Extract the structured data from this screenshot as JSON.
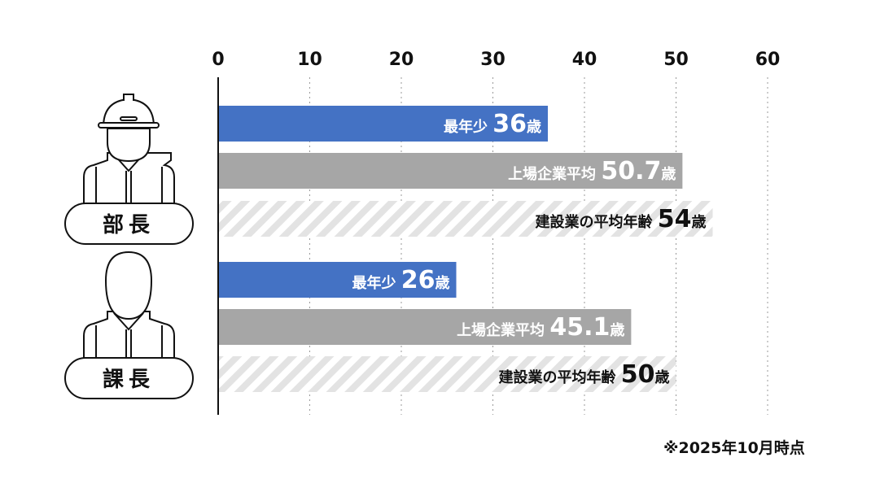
{
  "chart_data": {
    "type": "bar",
    "orientation": "horizontal",
    "xlim": [
      0,
      60
    ],
    "xticks": [
      "0",
      "10",
      "20",
      "30",
      "40",
      "50",
      "60"
    ],
    "grid": true,
    "groups": [
      {
        "name": "部長",
        "icon": "worker-helmet-icon",
        "bars": [
          {
            "label": "最年少",
            "value": 36,
            "value_text": "36",
            "unit": "歳",
            "style": "blue"
          },
          {
            "label": "上場企業平均",
            "value": 50.7,
            "value_text": "50.7",
            "unit": "歳",
            "style": "gray"
          },
          {
            "label": "建設業の平均年齢",
            "value": 54,
            "value_text": "54",
            "unit": "歳",
            "style": "hatched"
          }
        ]
      },
      {
        "name": "課長",
        "icon": "worker-icon",
        "bars": [
          {
            "label": "最年少",
            "value": 26,
            "value_text": "26",
            "unit": "歳",
            "style": "blue"
          },
          {
            "label": "上場企業平均",
            "value": 45.1,
            "value_text": "45.1",
            "unit": "歳",
            "style": "gray"
          },
          {
            "label": "建設業の平均年齢",
            "value": 50,
            "value_text": "50",
            "unit": "歳",
            "style": "hatched"
          }
        ]
      }
    ],
    "colors": {
      "blue": "#4472c4",
      "gray": "#a6a6a6",
      "hatch": "#e3e3e3"
    },
    "footnote": "※2025年10月時点"
  }
}
